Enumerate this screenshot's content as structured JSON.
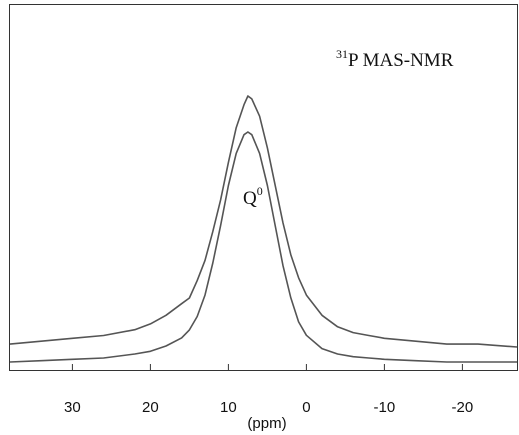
{
  "chart_data": {
    "type": "line",
    "xlabel": "(ppm)",
    "xlim": [
      38,
      -27
    ],
    "x_reversed": true,
    "x_ticks": [
      30,
      20,
      10,
      0,
      -10,
      -20
    ],
    "y_ticks_shown": false,
    "grid": false,
    "legend": "none",
    "annotations": {
      "nucleus_mass": "31",
      "nucleus_symbol": "P",
      "technique": "MAS-NMR",
      "peak_label_base": "Q",
      "peak_label_exp": "0"
    },
    "series": [
      {
        "x": [
          38,
          34,
          30,
          26,
          22,
          20,
          18,
          16,
          15,
          14,
          13,
          12,
          11,
          10,
          9,
          8,
          7.5,
          7,
          6,
          5,
          4,
          3,
          2,
          1,
          0,
          -2,
          -4,
          -6,
          -8,
          -10,
          -14,
          -18,
          -22,
          -27
        ],
        "y": [
          0.14,
          0.15,
          0.16,
          0.17,
          0.19,
          0.21,
          0.24,
          0.28,
          0.3,
          0.36,
          0.43,
          0.53,
          0.64,
          0.77,
          0.89,
          0.97,
          1.0,
          0.99,
          0.93,
          0.82,
          0.69,
          0.56,
          0.45,
          0.37,
          0.31,
          0.24,
          0.2,
          0.18,
          0.17,
          0.16,
          0.15,
          0.14,
          0.14,
          0.13
        ]
      },
      {
        "x": [
          38,
          34,
          30,
          26,
          22,
          20,
          18,
          16,
          15,
          14,
          13,
          12,
          11,
          10,
          9,
          8,
          7.5,
          7,
          6,
          5,
          4,
          3,
          2,
          1,
          0,
          -2,
          -4,
          -6,
          -8,
          -10,
          -14,
          -18,
          -22,
          -27
        ],
        "y": [
          0.02,
          0.025,
          0.03,
          0.035,
          0.05,
          0.06,
          0.08,
          0.11,
          0.14,
          0.19,
          0.27,
          0.39,
          0.53,
          0.68,
          0.8,
          0.87,
          0.88,
          0.87,
          0.8,
          0.68,
          0.53,
          0.38,
          0.26,
          0.17,
          0.12,
          0.07,
          0.05,
          0.04,
          0.035,
          0.03,
          0.025,
          0.02,
          0.02,
          0.02
        ]
      }
    ]
  }
}
